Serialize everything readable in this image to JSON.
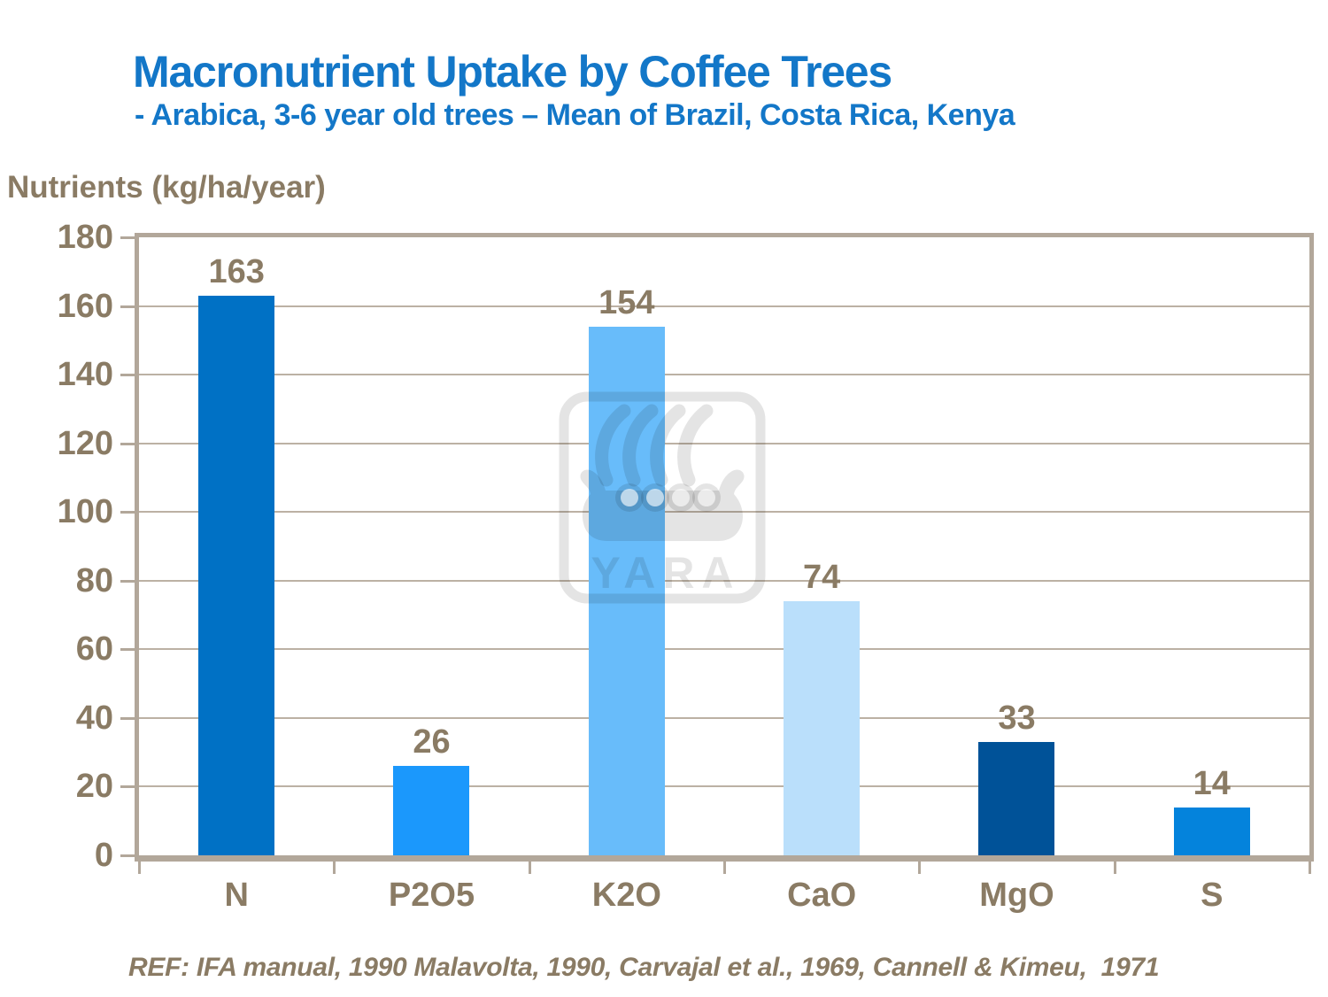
{
  "header": {
    "title": "Macronutrient Uptake by Coffee Trees",
    "subtitle": "- Arabica, 3-6 year old trees – Mean of Brazil, Costa Rica, Kenya"
  },
  "axis": {
    "title": "Nutrients (kg/ha/year)"
  },
  "watermark": {
    "label": "YARA"
  },
  "footer": {
    "text": "REF: IFA manual, 1990 Malavolta, 1990, Carvajal et al., 1969, Cannell & Kimeu,  1971"
  },
  "colors": {
    "title_blue": "#1377C8",
    "text_brown": "#8A7B64",
    "frame_tan": "#B2A79A",
    "gridline": "#BCB1A4",
    "watermark_gray": "#E4E4E4"
  },
  "chart_data": {
    "type": "bar",
    "title": "Macronutrient Uptake by Coffee Trees",
    "subtitle": "- Arabica, 3-6 year old trees – Mean of Brazil, Costa Rica, Kenya",
    "categories": [
      "N",
      "P2O5",
      "K2O",
      "CaO",
      "MgO",
      "S"
    ],
    "values": [
      163,
      26,
      154,
      74,
      33,
      14
    ],
    "bar_colors": [
      "#0071C5",
      "#1B98FC",
      "#68BCFA",
      "#BADFFB",
      "#005298",
      "#0483DC"
    ],
    "xlabel": "",
    "ylabel": "Nutrients (kg/ha/year)",
    "ylim": [
      0,
      180
    ],
    "yticks": [
      0,
      20,
      40,
      60,
      80,
      100,
      120,
      140,
      160,
      180
    ],
    "grid": true,
    "legend": false,
    "source": "REF: IFA manual, 1990 Malavolta, 1990, Carvajal et al., 1969, Cannell & Kimeu,  1971"
  }
}
